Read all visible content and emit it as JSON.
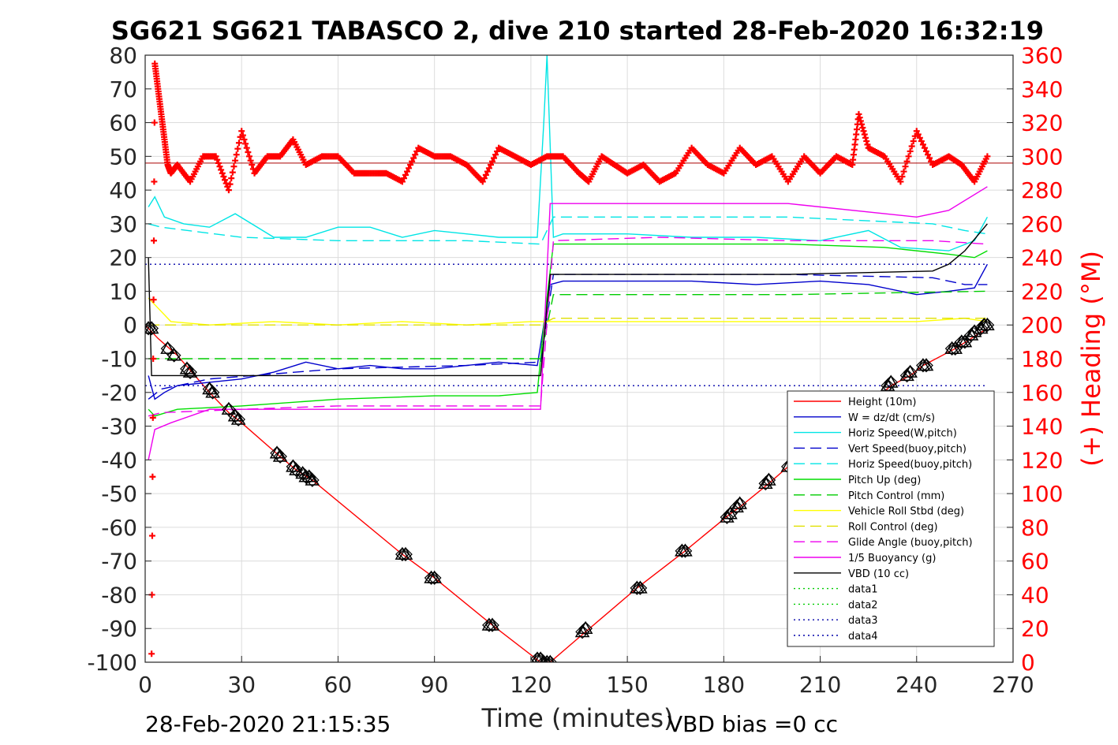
{
  "chart_data": {
    "type": "line",
    "title": "SG621 SG621 TABASCO 2, dive 210 started 28-Feb-2020 16:32:19",
    "xlabel": "Time (minutes)",
    "ylabel_right": "(+) Heading (°M)",
    "footer_left": "28-Feb-2020 21:15:35",
    "footer_right": "VBD bias =0 cc",
    "xlim": [
      0,
      270
    ],
    "ylim_left": [
      -100,
      80
    ],
    "ylim_right": [
      0,
      360
    ],
    "x_ticks": [
      0,
      30,
      60,
      90,
      120,
      150,
      180,
      210,
      240,
      270
    ],
    "y_ticks_left": [
      80,
      70,
      60,
      50,
      40,
      30,
      20,
      10,
      0,
      -10,
      -20,
      -30,
      -40,
      -50,
      -60,
      -70,
      -80,
      -90,
      -100
    ],
    "y_ticks_right": [
      360,
      340,
      320,
      300,
      280,
      260,
      240,
      220,
      200,
      180,
      160,
      140,
      120,
      100,
      80,
      60,
      40,
      20,
      0
    ],
    "grid": true,
    "legend_position": "bottom-right",
    "colors": {
      "height": "#ff0000",
      "w": "#0000cc",
      "horiz_w": "#00e5e5",
      "vert_buoy": "#0000cc",
      "horiz_buoy": "#00e5e5",
      "pitch_up": "#00dd00",
      "pitch_control": "#00cc00",
      "roll": "#ffff00",
      "roll_control": "#e0e000",
      "glide": "#ee00ee",
      "buoyancy": "#ee00ee",
      "vbd": "#000000",
      "heading": "#ff0000"
    },
    "series": [
      {
        "name": "Height (10m)",
        "key": "height",
        "style": "solid",
        "x": [
          0,
          4,
          10,
          20,
          26,
          30,
          42,
          47,
          52,
          80,
          90,
          108,
          123,
          126,
          137,
          153,
          168,
          182,
          185,
          194,
          200,
          226,
          232,
          238,
          242,
          252,
          257,
          262
        ],
        "y": [
          0,
          -4,
          -9,
          -20,
          -26,
          -29,
          -39,
          -43,
          -46,
          -68,
          -75,
          -89,
          -100,
          -100,
          -91,
          -78,
          -67,
          -56,
          -54,
          -47,
          -42,
          -23,
          -18,
          -15,
          -12,
          -7,
          -4,
          -1
        ]
      },
      {
        "name": "W = dz/dt (cm/s)",
        "key": "w",
        "style": "solid",
        "x": [
          1,
          3,
          6,
          10,
          20,
          30,
          40,
          50,
          60,
          70,
          80,
          90,
          100,
          110,
          122,
          124,
          126,
          130,
          150,
          170,
          190,
          210,
          225,
          240,
          250,
          258,
          262
        ],
        "y": [
          -15,
          -22,
          -20,
          -18,
          -17,
          -16,
          -14,
          -11,
          -13,
          -12,
          -13,
          -13,
          -12,
          -11,
          -12,
          0,
          12,
          13,
          13,
          13,
          12,
          13,
          12,
          9,
          10,
          11,
          18
        ]
      },
      {
        "name": "Horiz Speed(W,pitch)",
        "key": "horiz_w",
        "style": "solid",
        "x": [
          1,
          3,
          6,
          12,
          20,
          28,
          40,
          50,
          60,
          70,
          80,
          90,
          100,
          110,
          122,
          124,
          125,
          127,
          130,
          150,
          170,
          190,
          210,
          225,
          235,
          250,
          258,
          262
        ],
        "y": [
          35,
          38,
          32,
          30,
          29,
          33,
          26,
          26,
          29,
          29,
          26,
          28,
          27,
          26,
          26,
          60,
          80,
          26,
          27,
          27,
          26,
          26,
          25,
          28,
          23,
          22,
          25,
          32
        ]
      },
      {
        "name": "Vert Speed(buoy,pitch)",
        "key": "vert_buoy",
        "style": "dashed",
        "x": [
          1,
          5,
          20,
          60,
          100,
          123,
          127,
          150,
          200,
          245,
          255,
          262
        ],
        "y": [
          -22,
          -19,
          -16,
          -13,
          -12,
          -11,
          15,
          15,
          15,
          14,
          12,
          12
        ]
      },
      {
        "name": "Horiz Speed(buoy,pitch)",
        "key": "horiz_buoy",
        "style": "dashed",
        "x": [
          1,
          5,
          30,
          60,
          100,
          123,
          127,
          150,
          200,
          245,
          255,
          262
        ],
        "y": [
          30,
          29,
          26,
          25,
          25,
          24,
          32,
          32,
          32,
          30,
          28,
          27
        ]
      },
      {
        "name": "Pitch Up (deg)",
        "key": "pitch_up",
        "style": "solid",
        "x": [
          1,
          3,
          10,
          30,
          60,
          90,
          110,
          122,
          124,
          127,
          150,
          200,
          230,
          250,
          258,
          262
        ],
        "y": [
          -25,
          -27,
          -25,
          -24,
          -22,
          -21,
          -21,
          -20,
          0,
          24,
          24,
          24,
          23,
          21,
          20,
          22
        ]
      },
      {
        "name": "Pitch Control (mm)",
        "key": "pitch_control",
        "style": "dashed",
        "x": [
          1,
          10,
          60,
          123,
          127,
          200,
          262
        ],
        "y": [
          -10,
          -10,
          -10,
          -10,
          9,
          9,
          10
        ]
      },
      {
        "name": "Vehicle Roll Stbd (deg)",
        "key": "roll",
        "style": "solid",
        "x": [
          1,
          4,
          8,
          20,
          40,
          60,
          80,
          100,
          120,
          130,
          160,
          200,
          240,
          255,
          262
        ],
        "y": [
          8,
          5,
          1,
          0,
          1,
          0,
          1,
          0,
          1,
          1,
          1,
          1,
          1,
          2,
          1
        ]
      },
      {
        "name": "Roll Control (deg)",
        "key": "roll_control",
        "style": "dashed",
        "x": [
          1,
          60,
          123,
          127,
          262
        ],
        "y": [
          0,
          0,
          0,
          2,
          2
        ]
      },
      {
        "name": "Glide Angle (buoy,pitch)",
        "key": "glide",
        "style": "dashed",
        "x": [
          1,
          5,
          30,
          60,
          100,
          123,
          127,
          160,
          200,
          245,
          262
        ],
        "y": [
          -27,
          -26,
          -25,
          -24,
          -24,
          -24,
          25,
          26,
          25,
          25,
          24
        ]
      },
      {
        "name": "1/5 Buoyancy (g)",
        "key": "buoyancy",
        "style": "solid",
        "x": [
          1,
          3,
          8,
          20,
          60,
          110,
          123,
          126,
          150,
          200,
          240,
          250,
          262
        ],
        "y": [
          -40,
          -31,
          -29,
          -25,
          -25,
          -25,
          -25,
          36,
          36,
          36,
          32,
          34,
          41
        ]
      },
      {
        "name": "VBD (10 cc)",
        "key": "vbd",
        "style": "solid",
        "x": [
          1,
          2,
          123,
          126,
          200,
          245,
          250,
          255,
          262
        ],
        "y": [
          20,
          -15,
          -15,
          15,
          15,
          16,
          18,
          22,
          30
        ]
      },
      {
        "name": "data1",
        "key": "data1",
        "style": "dotted",
        "x": [],
        "y": []
      },
      {
        "name": "data2",
        "key": "data2",
        "style": "dotted",
        "x": [],
        "y": []
      },
      {
        "name": "data3",
        "key": "data3",
        "style": "dotted",
        "x": [
          0,
          262
        ],
        "y": [
          18,
          18
        ]
      },
      {
        "name": "data4",
        "key": "data4",
        "style": "dotted",
        "x": [
          0,
          262
        ],
        "y": [
          -18,
          -18
        ]
      }
    ],
    "heading": {
      "axis": "right",
      "x": [
        2,
        3,
        4,
        5,
        6,
        7,
        8,
        10,
        14,
        18,
        22,
        26,
        30,
        34,
        38,
        42,
        46,
        50,
        55,
        60,
        65,
        70,
        75,
        80,
        85,
        90,
        95,
        100,
        105,
        110,
        115,
        120,
        125,
        130,
        135,
        138,
        142,
        146,
        150,
        155,
        160,
        165,
        170,
        175,
        180,
        185,
        190,
        195,
        200,
        205,
        210,
        215,
        220,
        222,
        225,
        230,
        235,
        240,
        245,
        250,
        254,
        258,
        262
      ],
      "y": [
        5,
        355,
        340,
        325,
        310,
        295,
        290,
        295,
        285,
        300,
        300,
        280,
        315,
        290,
        300,
        300,
        310,
        295,
        300,
        300,
        290,
        290,
        290,
        285,
        305,
        300,
        300,
        295,
        285,
        305,
        300,
        295,
        300,
        300,
        290,
        285,
        300,
        295,
        290,
        295,
        285,
        290,
        305,
        295,
        290,
        305,
        295,
        300,
        285,
        300,
        290,
        300,
        295,
        325,
        305,
        300,
        285,
        315,
        295,
        300,
        295,
        285,
        300
      ]
    },
    "heading_ref": 296,
    "markers": {
      "symbol": "diamond-triangle",
      "x": [
        1,
        2,
        7,
        9,
        13,
        14,
        20,
        21,
        26,
        28,
        29,
        41,
        42,
        46,
        47,
        49,
        50,
        51,
        52,
        80,
        81,
        89,
        90,
        107,
        108,
        122,
        123,
        124,
        125,
        126,
        136,
        137,
        153,
        154,
        167,
        168,
        181,
        182,
        184,
        185,
        193,
        194,
        200,
        231,
        232,
        237,
        238,
        242,
        243,
        251,
        252,
        254,
        255,
        257,
        258,
        260,
        261,
        262
      ],
      "y": [
        -1,
        -1,
        -7,
        -9,
        -13,
        -14,
        -19,
        -20,
        -25,
        -27,
        -28,
        -38,
        -39,
        -42,
        -43,
        -44,
        -45,
        -45,
        -46,
        -68,
        -68,
        -75,
        -75,
        -89,
        -89,
        -99,
        -99,
        -100,
        -100,
        -100,
        -91,
        -90,
        -78,
        -78,
        -67,
        -67,
        -57,
        -56,
        -54,
        -53,
        -47,
        -46,
        -42,
        -18,
        -17,
        -15,
        -14,
        -12,
        -12,
        -7,
        -7,
        -5,
        -5,
        -3,
        -2,
        -1,
        0,
        0
      ]
    }
  }
}
